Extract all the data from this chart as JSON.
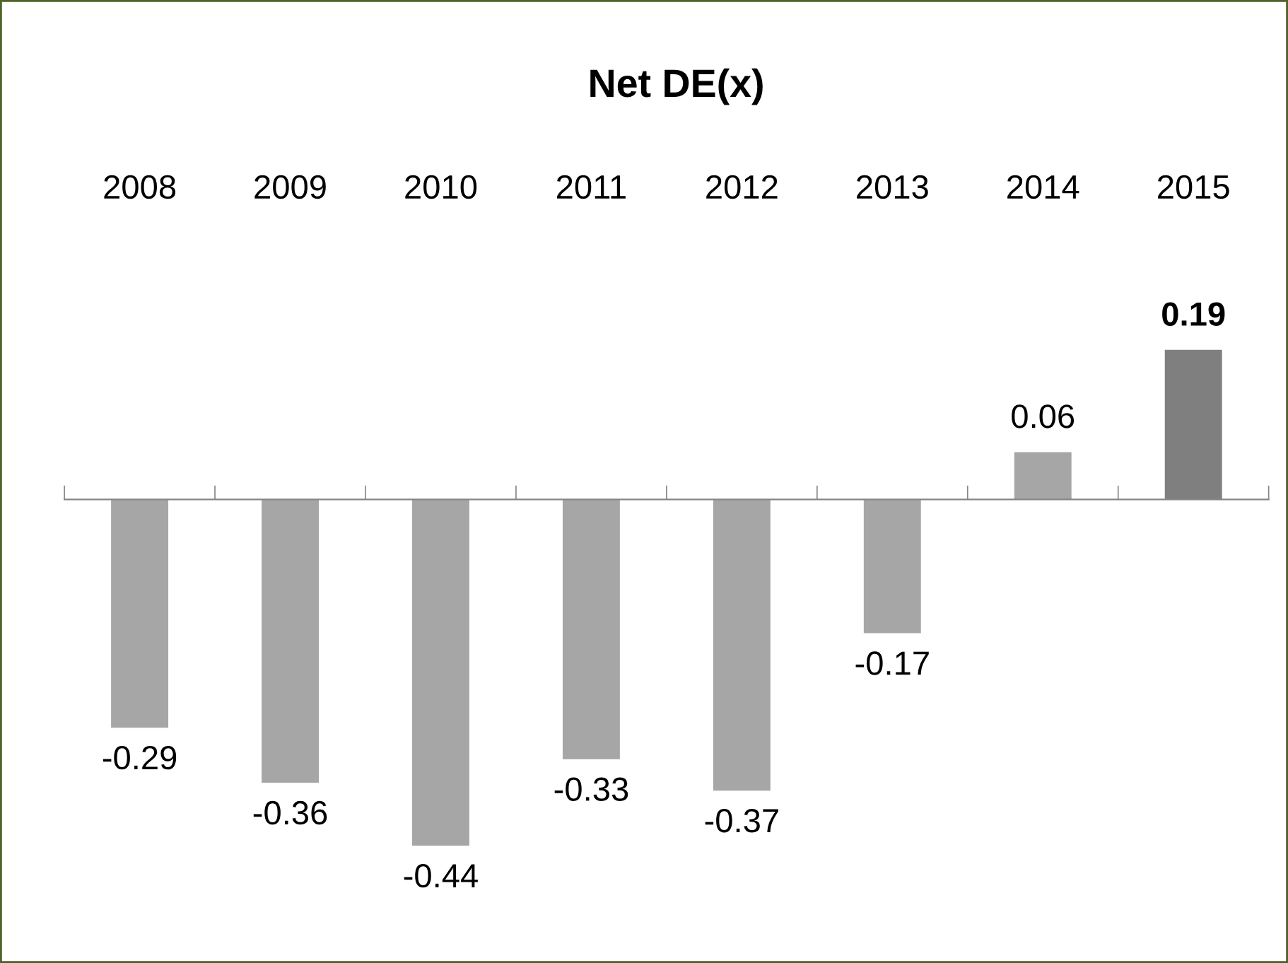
{
  "chart_data": {
    "type": "bar",
    "title": "Net DE(x)",
    "categories": [
      "2008",
      "2009",
      "2010",
      "2011",
      "2012",
      "2013",
      "2014",
      "2015"
    ],
    "values": [
      -0.29,
      -0.36,
      -0.44,
      -0.33,
      -0.37,
      -0.17,
      0.06,
      0.19
    ],
    "colors": [
      "#a6a6a6",
      "#a6a6a6",
      "#a6a6a6",
      "#a6a6a6",
      "#a6a6a6",
      "#a6a6a6",
      "#a6a6a6",
      "#7f7f7f"
    ],
    "data_labels": true,
    "grid": false,
    "legend": false
  }
}
